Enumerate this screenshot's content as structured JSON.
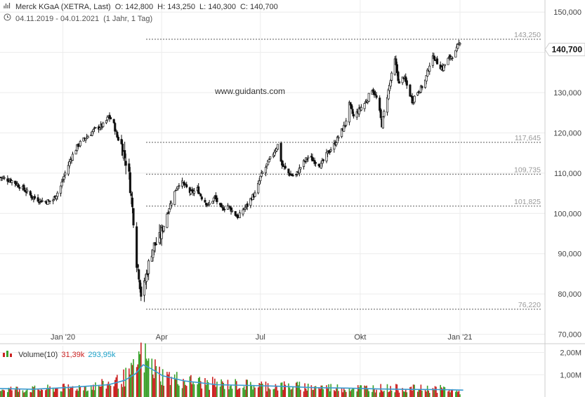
{
  "header": {
    "chart_icon": "bar-chart-icon",
    "instrument": "Merck KGaA (XETRA, Last)",
    "open": "O: 142,800",
    "high": "H: 143,250",
    "low": "L: 140,300",
    "close": "C: 140,700",
    "clock_icon": "clock-icon",
    "date_range": "04.11.2019 - 04.01.2021",
    "period": "(1 Jahr, 1 Tag)"
  },
  "watermark": "www.guidants.com",
  "volume_header": {
    "icon": "volume-bars-icon",
    "label": "Volume(10)",
    "last": "31,39k",
    "avg": "293,95k",
    "colors": {
      "last": "#cc2222",
      "avg": "#1aa0c8"
    }
  },
  "chart_data": {
    "type": "candlestick",
    "last_price_label": "140,700",
    "last_price": 140.7,
    "ylim": [
      68,
      153
    ],
    "y_ticks": [
      {
        "value": 150,
        "label": "150,000"
      },
      {
        "value": 140,
        "label": "140,000"
      },
      {
        "value": 130,
        "label": "130,000"
      },
      {
        "value": 120,
        "label": "120,000"
      },
      {
        "value": 110,
        "label": "110,000"
      },
      {
        "value": 100,
        "label": "100,000"
      },
      {
        "value": 90,
        "label": "90,000"
      },
      {
        "value": 80,
        "label": "80,000"
      },
      {
        "value": 70,
        "label": "70,000"
      }
    ],
    "x_ticks": [
      {
        "label": "Jan '20",
        "day": 58
      },
      {
        "label": "Apr",
        "day": 149
      },
      {
        "label": "Jul",
        "day": 240
      },
      {
        "label": "Okt",
        "day": 332
      },
      {
        "label": "Jan '21",
        "day": 424
      }
    ],
    "x_range_days": [
      0,
      427
    ],
    "levels": [
      {
        "value": 143.25,
        "label": "143,250"
      },
      {
        "value": 117.645,
        "label": "117,645"
      },
      {
        "value": 109.735,
        "label": "109,735"
      },
      {
        "value": 101.825,
        "label": "101,825"
      },
      {
        "value": 76.22,
        "label": "76,220"
      }
    ],
    "close_path": [
      [
        0,
        109
      ],
      [
        12,
        108
      ],
      [
        22,
        106
      ],
      [
        30,
        104
      ],
      [
        40,
        103
      ],
      [
        48,
        103
      ],
      [
        55,
        106
      ],
      [
        60,
        110
      ],
      [
        66,
        114
      ],
      [
        72,
        117
      ],
      [
        80,
        119
      ],
      [
        88,
        121
      ],
      [
        96,
        122
      ],
      [
        100,
        124
      ],
      [
        104,
        123
      ],
      [
        108,
        119
      ],
      [
        112,
        117
      ],
      [
        116,
        113
      ],
      [
        118,
        112
      ],
      [
        121,
        104
      ],
      [
        124,
        96
      ],
      [
        126,
        88
      ],
      [
        128,
        85
      ],
      [
        130,
        80
      ],
      [
        131,
        77
      ],
      [
        133,
        82
      ],
      [
        136,
        86
      ],
      [
        139,
        90
      ],
      [
        142,
        92
      ],
      [
        146,
        93
      ],
      [
        150,
        96
      ],
      [
        154,
        100
      ],
      [
        158,
        103
      ],
      [
        162,
        106
      ],
      [
        166,
        108
      ],
      [
        170,
        107
      ],
      [
        176,
        105
      ],
      [
        182,
        106
      ],
      [
        186,
        104
      ],
      [
        192,
        102
      ],
      [
        198,
        104
      ],
      [
        204,
        101
      ],
      [
        210,
        102
      ],
      [
        216,
        100
      ],
      [
        220,
        99
      ],
      [
        224,
        101
      ],
      [
        228,
        102
      ],
      [
        232,
        104
      ],
      [
        236,
        105
      ],
      [
        240,
        109
      ],
      [
        246,
        112
      ],
      [
        252,
        115
      ],
      [
        256,
        117
      ],
      [
        260,
        112
      ],
      [
        266,
        110
      ],
      [
        272,
        109
      ],
      [
        278,
        112
      ],
      [
        284,
        114
      ],
      [
        290,
        113
      ],
      [
        296,
        112
      ],
      [
        302,
        115
      ],
      [
        308,
        117
      ],
      [
        314,
        120
      ],
      [
        318,
        122
      ],
      [
        322,
        127
      ],
      [
        326,
        124
      ],
      [
        332,
        126
      ],
      [
        338,
        128
      ],
      [
        343,
        131
      ],
      [
        348,
        128
      ],
      [
        352,
        122
      ],
      [
        356,
        128
      ],
      [
        360,
        133
      ],
      [
        364,
        138
      ],
      [
        368,
        132
      ],
      [
        372,
        134
      ],
      [
        376,
        131
      ],
      [
        380,
        128
      ],
      [
        384,
        130
      ],
      [
        388,
        131
      ],
      [
        392,
        133
      ],
      [
        396,
        137
      ],
      [
        400,
        139
      ],
      [
        404,
        137
      ],
      [
        408,
        136
      ],
      [
        412,
        138
      ],
      [
        416,
        139
      ],
      [
        420,
        140
      ],
      [
        424,
        142.8
      ]
    ],
    "volume": {
      "ylim": [
        0,
        2.3
      ],
      "y_ticks": [
        {
          "value": 2.0,
          "label": "2,00M"
        },
        {
          "value": 1.0,
          "label": "1,00M"
        }
      ],
      "colors": {
        "up": "#3aa02a",
        "down": "#cc2222",
        "avg_line": "#3a9ad0"
      },
      "avg_path": [
        [
          0,
          0.38
        ],
        [
          30,
          0.35
        ],
        [
          60,
          0.42
        ],
        [
          100,
          0.55
        ],
        [
          115,
          0.75
        ],
        [
          125,
          1.05
        ],
        [
          132,
          1.45
        ],
        [
          140,
          1.25
        ],
        [
          150,
          0.95
        ],
        [
          170,
          0.72
        ],
        [
          200,
          0.55
        ],
        [
          230,
          0.52
        ],
        [
          260,
          0.48
        ],
        [
          290,
          0.42
        ],
        [
          320,
          0.4
        ],
        [
          350,
          0.36
        ],
        [
          380,
          0.34
        ],
        [
          410,
          0.33
        ],
        [
          427,
          0.31
        ]
      ],
      "level_path": [
        [
          0,
          0.4
        ],
        [
          30,
          0.38
        ],
        [
          60,
          0.45
        ],
        [
          90,
          0.55
        ],
        [
          110,
          0.8
        ],
        [
          122,
          1.2
        ],
        [
          128,
          1.9
        ],
        [
          132,
          2.05
        ],
        [
          138,
          1.6
        ],
        [
          150,
          1.05
        ],
        [
          170,
          0.8
        ],
        [
          200,
          0.65
        ],
        [
          230,
          0.6
        ],
        [
          260,
          0.55
        ],
        [
          290,
          0.5
        ],
        [
          320,
          0.45
        ],
        [
          350,
          0.45
        ],
        [
          380,
          0.42
        ],
        [
          410,
          0.4
        ],
        [
          427,
          0.2
        ]
      ]
    }
  }
}
